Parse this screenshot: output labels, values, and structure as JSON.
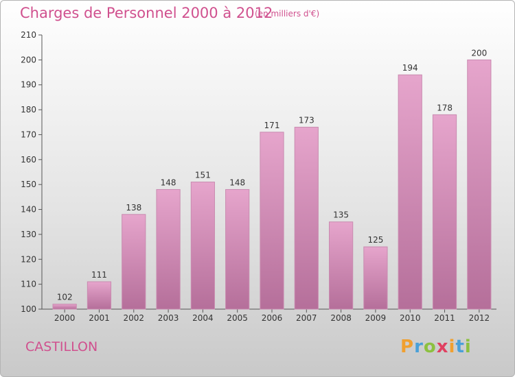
{
  "title": "Charges de Personnel 2000 à 2012",
  "subtitle": "(en milliers d'€)",
  "commune": "CASTILLON",
  "logo": {
    "text": "Proxiti",
    "colors": [
      "#f0a030",
      "#4aa0d8",
      "#8cc040",
      "#e04060",
      "#f0a030",
      "#4aa0d8",
      "#8cc040"
    ]
  },
  "colors": {
    "bar_top": "#e6a5cc",
    "bar_bottom": "#b56f9a",
    "title": "#d0508e"
  },
  "chart_data": {
    "type": "bar",
    "categories": [
      "2000",
      "2001",
      "2002",
      "2003",
      "2004",
      "2005",
      "2006",
      "2007",
      "2008",
      "2009",
      "2010",
      "2011",
      "2012"
    ],
    "values": [
      102,
      111,
      138,
      148,
      151,
      148,
      171,
      173,
      135,
      125,
      194,
      178,
      200
    ],
    "ylim": [
      100,
      210
    ],
    "yticks": [
      100,
      110,
      120,
      130,
      140,
      150,
      160,
      170,
      180,
      190,
      200,
      210
    ],
    "grid": false,
    "data_labels": true
  }
}
